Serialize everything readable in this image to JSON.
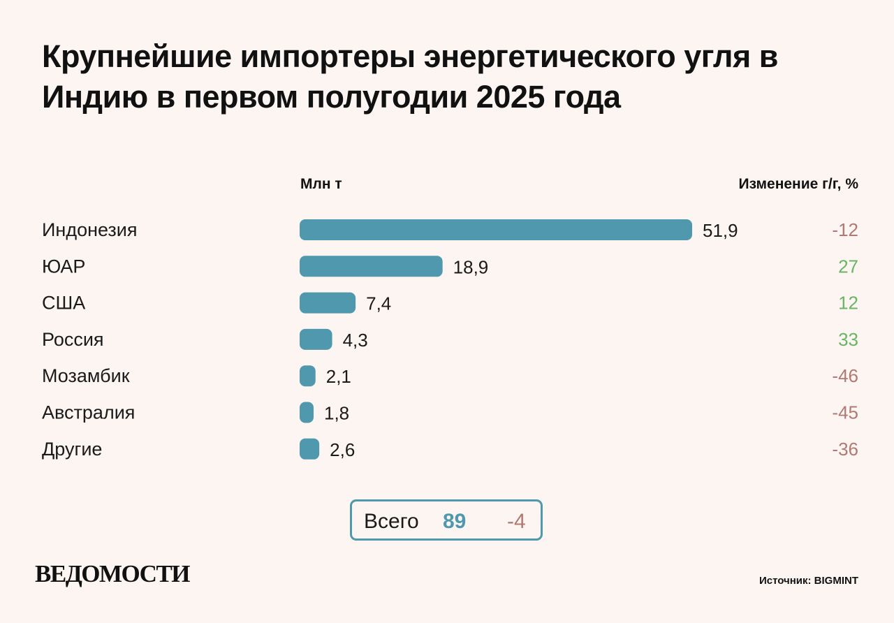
{
  "title": "Крупнейшие импортеры энергетического угля в Индию в первом полугодии 2025 года",
  "logo": "ВЕДОМОСТИ",
  "source": "Источник: BIGMINT",
  "colors": {
    "bar": "#4f98ae",
    "positive": "#6ab465",
    "negative": "#b07a72",
    "background": "#fcf5f2"
  },
  "total": {
    "label": "Всего",
    "value": "89",
    "change": "-4"
  },
  "chart_data": {
    "type": "bar",
    "orientation": "horizontal",
    "title": "Крупнейшие импортеры энергетического угля в Индию в первом полугодии 2025 года",
    "value_header": "Млн т",
    "change_header": "Изменение г/г, %",
    "categories": [
      "Индонезия",
      "ЮАР",
      "США",
      "Россия",
      "Мозамбик",
      "Австралия",
      "Другие"
    ],
    "values": [
      51.9,
      18.9,
      7.4,
      4.3,
      2.1,
      1.8,
      2.6
    ],
    "value_labels": [
      "51,9",
      "18,9",
      "7,4",
      "4,3",
      "2,1",
      "1,8",
      "2,6"
    ],
    "changes": [
      -12,
      27,
      12,
      33,
      -46,
      -45,
      -36
    ],
    "change_labels": [
      "-12",
      "27",
      "12",
      "33",
      "-46",
      "-45",
      "-36"
    ],
    "xlim": [
      0,
      51.9
    ],
    "grid": false,
    "legend": "none"
  }
}
